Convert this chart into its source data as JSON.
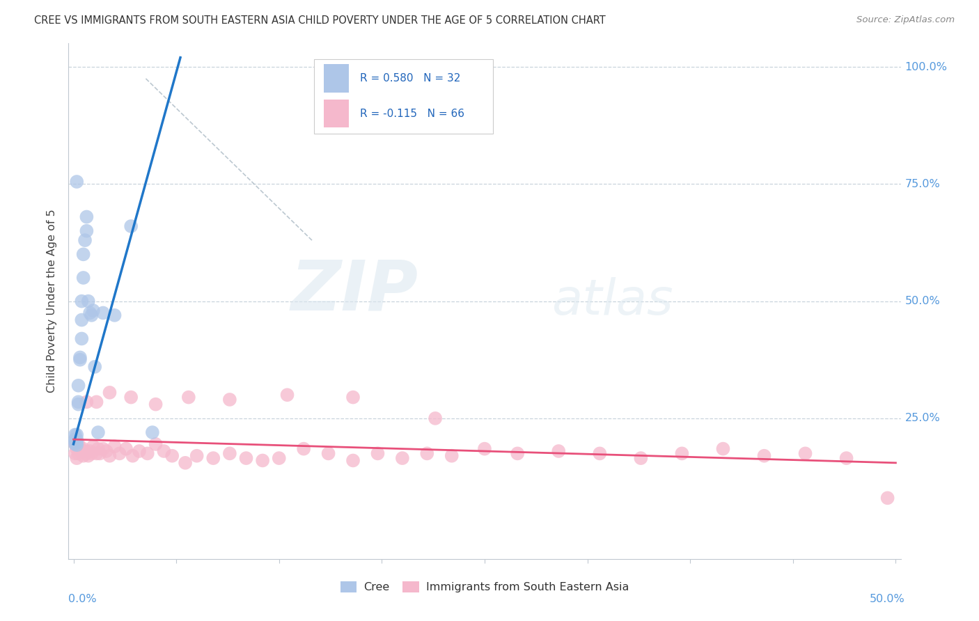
{
  "title": "CREE VS IMMIGRANTS FROM SOUTH EASTERN ASIA CHILD POVERTY UNDER THE AGE OF 5 CORRELATION CHART",
  "source": "Source: ZipAtlas.com",
  "ylabel": "Child Poverty Under the Age of 5",
  "legend_label1": "Cree",
  "legend_label2": "Immigrants from South Eastern Asia",
  "R1": 0.58,
  "N1": 32,
  "R2": -0.115,
  "N2": 66,
  "color_cree": "#aec6e8",
  "color_immigrants": "#f5b8cc",
  "color_line_cree": "#2077c9",
  "color_line_immigrants": "#e8507a",
  "background_color": "#ffffff",
  "grid_color": "#c8d4dc",
  "watermark_zip": "ZIP",
  "watermark_atlas": "atlas",
  "cree_x": [
    0.001,
    0.001,
    0.001,
    0.001,
    0.002,
    0.002,
    0.002,
    0.002,
    0.003,
    0.003,
    0.003,
    0.004,
    0.004,
    0.005,
    0.005,
    0.005,
    0.006,
    0.006,
    0.007,
    0.008,
    0.008,
    0.009,
    0.01,
    0.011,
    0.012,
    0.013,
    0.015,
    0.018,
    0.025,
    0.035,
    0.048,
    0.002
  ],
  "cree_y": [
    0.215,
    0.205,
    0.2,
    0.195,
    0.215,
    0.205,
    0.198,
    0.193,
    0.285,
    0.32,
    0.28,
    0.375,
    0.38,
    0.42,
    0.5,
    0.46,
    0.55,
    0.6,
    0.63,
    0.65,
    0.68,
    0.5,
    0.475,
    0.47,
    0.48,
    0.36,
    0.22,
    0.475,
    0.47,
    0.66,
    0.22,
    0.755
  ],
  "imm_x": [
    0.001,
    0.001,
    0.002,
    0.002,
    0.003,
    0.003,
    0.004,
    0.005,
    0.006,
    0.006,
    0.007,
    0.008,
    0.009,
    0.01,
    0.011,
    0.012,
    0.014,
    0.015,
    0.016,
    0.018,
    0.02,
    0.022,
    0.025,
    0.028,
    0.032,
    0.036,
    0.04,
    0.045,
    0.05,
    0.055,
    0.06,
    0.068,
    0.075,
    0.085,
    0.095,
    0.105,
    0.115,
    0.125,
    0.14,
    0.155,
    0.17,
    0.185,
    0.2,
    0.215,
    0.23,
    0.25,
    0.27,
    0.295,
    0.32,
    0.345,
    0.37,
    0.395,
    0.42,
    0.445,
    0.47,
    0.495,
    0.008,
    0.014,
    0.022,
    0.035,
    0.05,
    0.07,
    0.095,
    0.13,
    0.17,
    0.22
  ],
  "imm_y": [
    0.195,
    0.175,
    0.185,
    0.165,
    0.195,
    0.175,
    0.185,
    0.18,
    0.185,
    0.17,
    0.18,
    0.175,
    0.17,
    0.18,
    0.175,
    0.19,
    0.175,
    0.185,
    0.175,
    0.185,
    0.18,
    0.17,
    0.19,
    0.175,
    0.185,
    0.17,
    0.18,
    0.175,
    0.195,
    0.18,
    0.17,
    0.155,
    0.17,
    0.165,
    0.175,
    0.165,
    0.16,
    0.165,
    0.185,
    0.175,
    0.16,
    0.175,
    0.165,
    0.175,
    0.17,
    0.185,
    0.175,
    0.18,
    0.175,
    0.165,
    0.175,
    0.185,
    0.17,
    0.175,
    0.165,
    0.08,
    0.285,
    0.285,
    0.305,
    0.295,
    0.28,
    0.295,
    0.29,
    0.3,
    0.295,
    0.25
  ],
  "xlim": [
    0.0,
    0.5
  ],
  "ylim": [
    0.0,
    1.0
  ],
  "x_major_ticks": [
    0.0,
    0.0625,
    0.125,
    0.1875,
    0.25,
    0.3125,
    0.375,
    0.4375,
    0.5
  ],
  "y_right_ticks": [
    [
      1.0,
      "100.0%"
    ],
    [
      0.75,
      "75.0%"
    ],
    [
      0.5,
      "50.0%"
    ],
    [
      0.25,
      "25.0%"
    ]
  ]
}
